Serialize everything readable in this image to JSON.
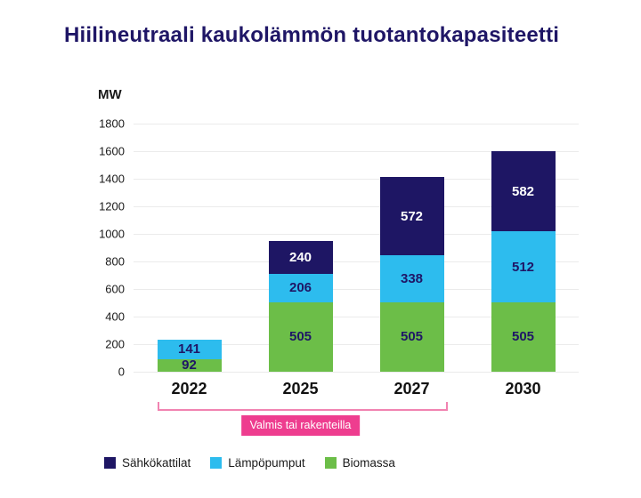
{
  "title": "Hiilineutraali kaukolämmön tuotantokapasiteetti",
  "chart_data": {
    "type": "bar",
    "stacked": true,
    "title": "Hiilineutraali kaukolämmön tuotantokapasiteetti",
    "ylabel": "MW",
    "xlabel": "",
    "ylim": [
      0,
      1800
    ],
    "ytick_step": 200,
    "grid": true,
    "categories": [
      "2022",
      "2025",
      "2027",
      "2030"
    ],
    "series": [
      {
        "name": "Biomassa",
        "color": "#6cbe48",
        "label_color": "#1f1666",
        "values": [
          92,
          505,
          505,
          505
        ]
      },
      {
        "name": "Lämpöpumput",
        "color": "#2dbcee",
        "label_color": "#1f1666",
        "values": [
          141,
          206,
          338,
          512
        ]
      },
      {
        "name": "Sähkökattilat",
        "color": "#1e1664",
        "label_color": "#ffffff",
        "values": [
          0,
          240,
          572,
          582
        ]
      }
    ],
    "legend": [
      "Sähkökattilat",
      "Lämpöpumput",
      "Biomassa"
    ],
    "legend_position": "bottom",
    "annotation": {
      "label": "Valmis tai rakenteilla",
      "from_category": "2022",
      "to_category": "2027",
      "badge_color": "#ee3d8f",
      "badge_text_color": "#ffffff",
      "bracket_color": "#f183b1"
    }
  }
}
